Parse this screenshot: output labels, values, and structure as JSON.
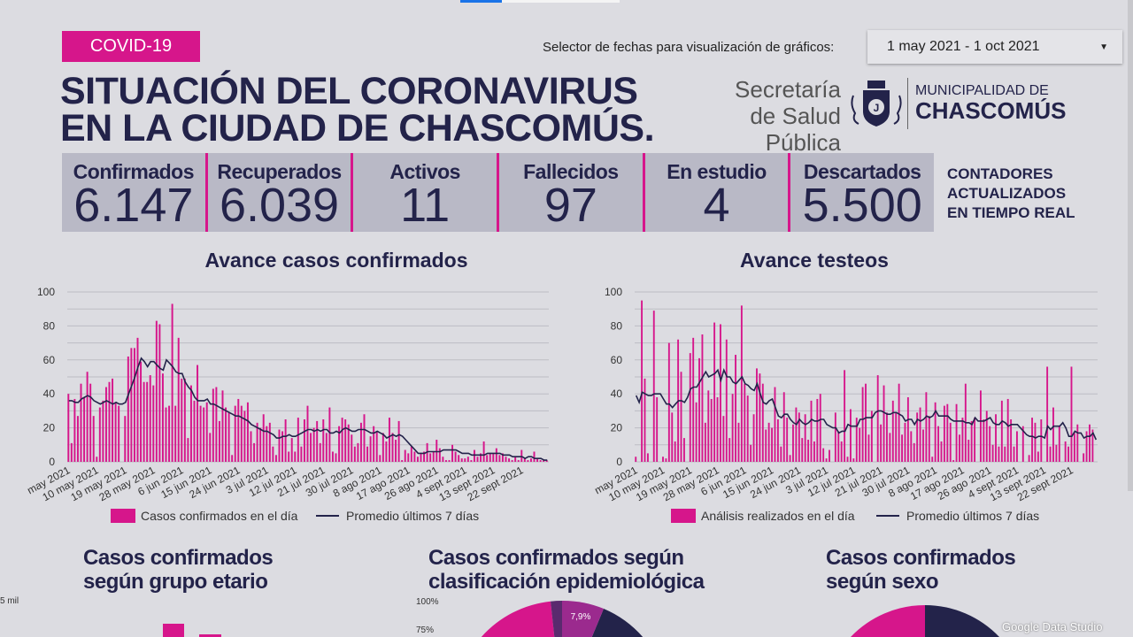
{
  "header": {
    "tag": "COVID-19",
    "title_line1": "SITUACIÓN DEL CORONAVIRUS",
    "title_line2": "EN LA CIUDAD DE CHASCOMÚS.",
    "date_selector_label": "Selector de fechas para visualización de gráficos:",
    "date_range": "1 may 2021 - 1 oct 2021",
    "secretaria_line1": "Secretaría",
    "secretaria_line2": "de Salud Pública",
    "muni_line1": "MUNICIPALIDAD DE",
    "muni_line2": "CHASCOMÚS"
  },
  "counters": [
    {
      "label": "Confirmados",
      "value": "6.147"
    },
    {
      "label": "Recuperados",
      "value": "6.039"
    },
    {
      "label": "Activos",
      "value": "11"
    },
    {
      "label": "Fallecidos",
      "value": "97"
    },
    {
      "label": "En estudio",
      "value": "4"
    },
    {
      "label": "Descartados",
      "value": "5.500"
    }
  ],
  "realtime": {
    "l1": "CONTADORES",
    "l2": "ACTUALIZADOS",
    "l3": "EN TIEMPO REAL"
  },
  "colors": {
    "pink": "#d6168b",
    "navy": "#23234a",
    "purple": "#9b2a8e",
    "dark_purple": "#5a2a6e"
  },
  "chart_data": [
    {
      "type": "bar+line",
      "title": "Avance casos confirmados",
      "ylim": [
        0,
        100
      ],
      "yticks": [
        0,
        20,
        40,
        60,
        80,
        100
      ],
      "grid": true,
      "legend": "bottom",
      "x_start": "2021-05-01",
      "x_end": "2021-09-30",
      "xticks": [
        "may 2021",
        "10 may 2021",
        "19 may 2021",
        "28 may 2021",
        "6 jun 2021",
        "15 jun 2021",
        "24 jun 2021",
        "3 jul 2021",
        "12 jul 2021",
        "21 jul 2021",
        "30 jul 2021",
        "8 ago 2021",
        "17 ago 2021",
        "26 ago 2021",
        "4 sept 2021",
        "13 sept 2021",
        "22 sept 2021"
      ],
      "series": [
        {
          "name": "Casos confirmados en el día",
          "kind": "bar",
          "color": "#d6168b",
          "values": [
            40,
            11,
            37,
            27,
            46,
            38,
            53,
            46,
            27,
            3,
            32,
            36,
            44,
            47,
            49,
            35,
            33,
            0,
            27,
            62,
            67,
            67,
            73,
            59,
            47,
            47,
            51,
            45,
            83,
            81,
            52,
            32,
            33,
            93,
            33,
            73,
            49,
            49,
            14,
            45,
            36,
            57,
            33,
            32,
            35,
            17,
            43,
            44,
            24,
            42,
            32,
            29,
            4,
            33,
            37,
            33,
            30,
            35,
            18,
            11,
            23,
            20,
            28,
            21,
            23,
            9,
            4,
            19,
            18,
            25,
            6,
            14,
            6,
            26,
            9,
            25,
            33,
            17,
            20,
            24,
            11,
            25,
            17,
            32,
            6,
            5,
            21,
            26,
            25,
            22,
            16,
            9,
            11,
            23,
            28,
            9,
            15,
            21,
            18,
            4,
            17,
            12,
            26,
            17,
            13,
            24,
            1,
            7,
            5,
            9,
            6,
            3,
            5,
            6,
            11,
            5,
            6,
            13,
            8,
            3,
            1,
            1,
            10,
            6,
            4,
            2,
            2,
            3,
            1,
            7,
            3,
            5,
            12,
            4,
            5,
            5,
            8,
            4,
            5,
            3,
            2,
            1,
            3,
            1,
            7,
            2,
            1,
            2,
            6,
            2,
            1,
            1,
            1
          ]
        },
        {
          "name": "Promedio últimos 7 días",
          "kind": "line",
          "color": "#23234a",
          "values": [
            36,
            36,
            35,
            35,
            37,
            38,
            39,
            38,
            36,
            35,
            34,
            35,
            36,
            35,
            34,
            35,
            34,
            34,
            35,
            40,
            45,
            50,
            56,
            61,
            59,
            56,
            59,
            59,
            57,
            55,
            54,
            60,
            58,
            56,
            53,
            52,
            52,
            47,
            44,
            42,
            38,
            36,
            36,
            36,
            37,
            34,
            34,
            33,
            32,
            31,
            30,
            29,
            28,
            27,
            27,
            26,
            25,
            24,
            22,
            21,
            20,
            19,
            18,
            18,
            17,
            16,
            14,
            14,
            15,
            15,
            16,
            15,
            15,
            16,
            17,
            18,
            19,
            19,
            18,
            19,
            18,
            19,
            19,
            17,
            17,
            18,
            17,
            19,
            20,
            19,
            18,
            18,
            19,
            19,
            19,
            18,
            17,
            17,
            18,
            17,
            16,
            14,
            15,
            16,
            15,
            16,
            15,
            13,
            11,
            9,
            7,
            5,
            5,
            5,
            6,
            6,
            6,
            6,
            6,
            7,
            7,
            7,
            7,
            7,
            6,
            5,
            5,
            5,
            4,
            4,
            4,
            4,
            4,
            5,
            5,
            5,
            5,
            5,
            4,
            4,
            4,
            3,
            3,
            3,
            3,
            2,
            3,
            3,
            2,
            2,
            2,
            1,
            1
          ]
        }
      ]
    },
    {
      "type": "bar+line",
      "title": "Avance testeos",
      "ylim": [
        0,
        100
      ],
      "yticks": [
        0,
        20,
        40,
        60,
        80,
        100
      ],
      "grid": true,
      "legend": "bottom",
      "x_start": "2021-05-01",
      "x_end": "2021-09-30",
      "xticks": [
        "may 2021",
        "10 may 2021",
        "19 may 2021",
        "28 may 2021",
        "6 jun 2021",
        "15 jun 2021",
        "24 jun 2021",
        "3 jul 2021",
        "12 jul 2021",
        "21 jul 2021",
        "30 jul 2021",
        "8 ago 2021",
        "17 ago 2021",
        "26 ago 2021",
        "4 sept 2021",
        "13 sept 2021",
        "22 sept 2021"
      ],
      "series": [
        {
          "name": "Análisis realizados en el día",
          "kind": "bar",
          "color": "#d6168b",
          "values": [
            3,
            0,
            95,
            49,
            5,
            0,
            89,
            38,
            0,
            3,
            2,
            70,
            29,
            12,
            72,
            53,
            14,
            0,
            64,
            73,
            35,
            61,
            75,
            23,
            42,
            37,
            82,
            38,
            81,
            27,
            72,
            14,
            40,
            63,
            23,
            92,
            46,
            39,
            10,
            28,
            55,
            52,
            46,
            19,
            23,
            20,
            44,
            25,
            9,
            41,
            26,
            4,
            22,
            32,
            29,
            14,
            28,
            13,
            36,
            12,
            37,
            40,
            8,
            2,
            7,
            0,
            29,
            18,
            12,
            54,
            3,
            31,
            2,
            26,
            20,
            44,
            46,
            16,
            30,
            0,
            51,
            22,
            45,
            29,
            17,
            36,
            29,
            46,
            16,
            23,
            38,
            18,
            11,
            29,
            32,
            19,
            41,
            27,
            3,
            35,
            21,
            12,
            33,
            34,
            23,
            1,
            34,
            16,
            26,
            46,
            13,
            24,
            26,
            0,
            42,
            25,
            30,
            21,
            10,
            28,
            9,
            36,
            9,
            37,
            25,
            9,
            18,
            0,
            21,
            0,
            4,
            26,
            23,
            6,
            25,
            0,
            56,
            9,
            32,
            10,
            21,
            0,
            12,
            9,
            56,
            17,
            22,
            0,
            5,
            18,
            22,
            19,
            0
          ]
        },
        {
          "name": "Promedio últimos 7 días",
          "kind": "line",
          "color": "#23234a",
          "values": [
            39,
            35,
            41,
            40,
            39,
            39,
            40,
            40,
            40,
            37,
            34,
            34,
            32,
            34,
            36,
            36,
            35,
            38,
            43,
            44,
            44,
            47,
            50,
            53,
            50,
            51,
            52,
            54,
            48,
            54,
            50,
            50,
            47,
            46,
            48,
            50,
            46,
            45,
            43,
            42,
            46,
            40,
            35,
            34,
            36,
            37,
            32,
            27,
            26,
            28,
            28,
            25,
            23,
            22,
            25,
            23,
            22,
            23,
            25,
            24,
            24,
            25,
            25,
            22,
            21,
            20,
            20,
            17,
            18,
            18,
            22,
            21,
            21,
            21,
            25,
            25,
            26,
            26,
            26,
            29,
            30,
            30,
            29,
            28,
            28,
            29,
            29,
            28,
            27,
            24,
            25,
            25,
            22,
            25,
            24,
            25,
            27,
            26,
            27,
            30,
            27,
            27,
            27,
            27,
            25,
            24,
            24,
            24,
            24,
            23,
            23,
            22,
            26,
            24,
            24,
            24,
            25,
            26,
            23,
            22,
            22,
            24,
            23,
            21,
            22,
            22,
            22,
            20,
            18,
            16,
            15,
            15,
            14,
            15,
            15,
            14,
            21,
            19,
            21,
            21,
            21,
            23,
            20,
            15,
            15,
            18,
            17,
            17,
            14,
            15,
            15,
            17,
            13
          ]
        }
      ]
    }
  ],
  "bottom": {
    "age": {
      "title1": "Casos confirmados",
      "title2": "según grupo etario",
      "ytick": "5 mil"
    },
    "epi": {
      "title1": "Casos confirmados según",
      "title2": "clasificación epidemiológica",
      "yticks": [
        "100%",
        "75%"
      ],
      "slice_label": "7,9%"
    },
    "sex": {
      "title1": "Casos confirmados",
      "title2": "según sexo"
    }
  },
  "footer": {
    "brand": "Google Data Studio"
  }
}
